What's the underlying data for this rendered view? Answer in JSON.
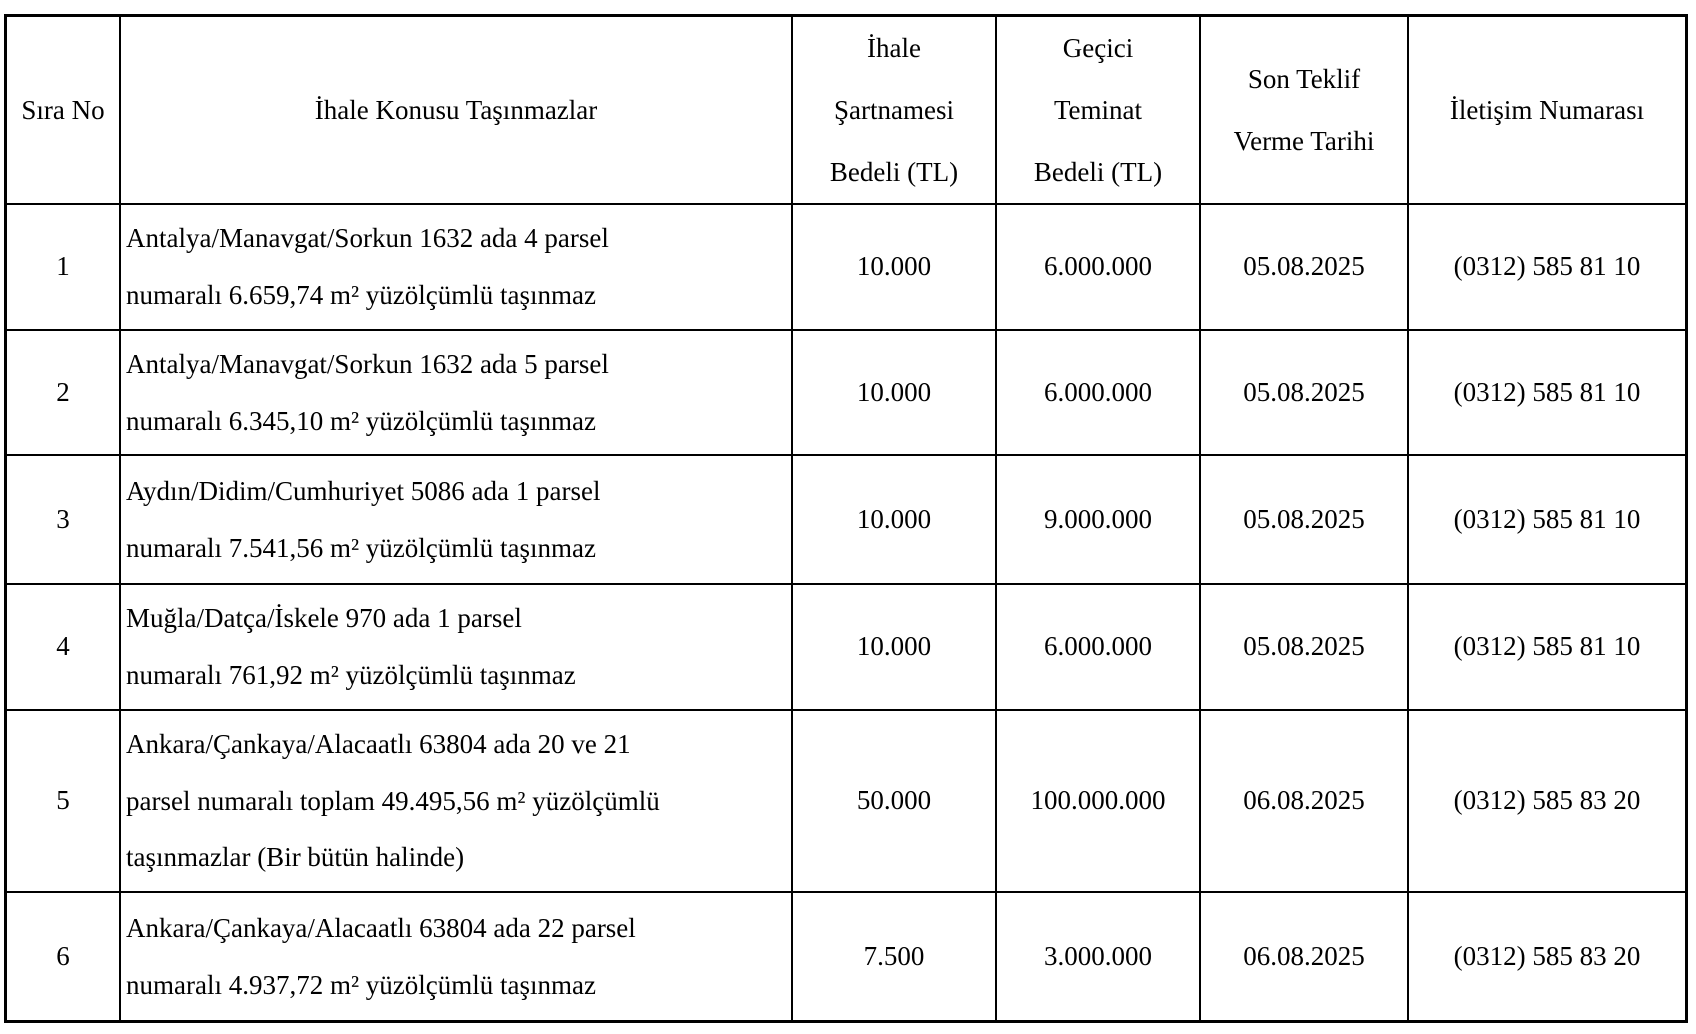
{
  "colors": {
    "border": "#000000",
    "background": "#ffffff",
    "text": "#000000"
  },
  "table": {
    "headers": {
      "sira_no": "Sıra No",
      "konu": "İhale Konusu Taşınmazlar",
      "sartname": [
        "İhale",
        "Şartnamesi",
        "Bedeli (TL)"
      ],
      "teminat": [
        "Geçici",
        "Teminat",
        "Bedeli (TL)"
      ],
      "son_teklif": [
        "Son Teklif",
        "Verme Tarihi"
      ],
      "iletisim": "İletişim Numarası"
    },
    "rows": [
      {
        "no": "1",
        "desc": [
          "Antalya/Manavgat/Sorkun 1632 ada 4 parsel",
          "numaralı 6.659,74 m² yüzölçümlü taşınmaz"
        ],
        "sartname": "10.000",
        "teminat": "6.000.000",
        "tarih": "05.08.2025",
        "iletisim": "(0312) 585 81 10"
      },
      {
        "no": "2",
        "desc": [
          "Antalya/Manavgat/Sorkun 1632 ada 5 parsel",
          "numaralı 6.345,10 m² yüzölçümlü taşınmaz"
        ],
        "sartname": "10.000",
        "teminat": "6.000.000",
        "tarih": "05.08.2025",
        "iletisim": "(0312) 585 81 10"
      },
      {
        "no": "3",
        "desc": [
          "Aydın/Didim/Cumhuriyet 5086 ada 1 parsel",
          "numaralı 7.541,56 m² yüzölçümlü taşınmaz"
        ],
        "sartname": "10.000",
        "teminat": "9.000.000",
        "tarih": "05.08.2025",
        "iletisim": "(0312) 585 81 10"
      },
      {
        "no": "4",
        "desc": [
          "Muğla/Datça/İskele 970 ada 1 parsel",
          "numaralı 761,92 m² yüzölçümlü taşınmaz"
        ],
        "sartname": "10.000",
        "teminat": "6.000.000",
        "tarih": "05.08.2025",
        "iletisim": "(0312) 585 81 10"
      },
      {
        "no": "5",
        "desc": [
          "Ankara/Çankaya/Alacaatlı 63804 ada 20 ve 21",
          "parsel numaralı toplam 49.495,56 m² yüzölçümlü",
          "taşınmazlar (Bir bütün halinde)"
        ],
        "sartname": "50.000",
        "teminat": "100.000.000",
        "tarih": "06.08.2025",
        "iletisim": "(0312) 585 83 20"
      },
      {
        "no": "6",
        "desc": [
          "Ankara/Çankaya/Alacaatlı 63804 ada 22 parsel",
          "numaralı 4.937,72 m² yüzölçümlü taşınmaz"
        ],
        "sartname": "7.500",
        "teminat": "3.000.000",
        "tarih": "06.08.2025",
        "iletisim": "(0312) 585 83 20"
      }
    ]
  }
}
